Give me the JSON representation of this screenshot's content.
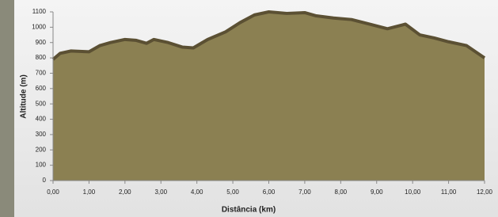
{
  "chart_data": {
    "type": "area",
    "xlabel": "Distância (km)",
    "ylabel": "Altitude (m)",
    "x": [
      0,
      0.2,
      0.5,
      1.0,
      1.3,
      1.6,
      2.0,
      2.3,
      2.6,
      2.8,
      3.2,
      3.6,
      3.9,
      4.3,
      4.8,
      5.2,
      5.6,
      6.0,
      6.5,
      7.0,
      7.3,
      7.8,
      8.3,
      8.8,
      9.3,
      9.8,
      10.2,
      10.6,
      11.0,
      11.5,
      12.0
    ],
    "values": [
      790,
      830,
      845,
      840,
      880,
      900,
      920,
      915,
      895,
      920,
      900,
      870,
      865,
      920,
      970,
      1030,
      1080,
      1100,
      1090,
      1095,
      1075,
      1060,
      1050,
      1020,
      990,
      1020,
      950,
      930,
      905,
      880,
      800
    ],
    "color": "#8b8052",
    "line_color": "#5b5033",
    "xlim": [
      0,
      12
    ],
    "ylim": [
      0,
      1100
    ],
    "xticks": [
      {
        "value": 0,
        "label": "0,00"
      },
      {
        "value": 1,
        "label": "1,00"
      },
      {
        "value": 2,
        "label": "2,00"
      },
      {
        "value": 3,
        "label": "3,00"
      },
      {
        "value": 4,
        "label": "4,00"
      },
      {
        "value": 5,
        "label": "5,00"
      },
      {
        "value": 6,
        "label": "6,00"
      },
      {
        "value": 7,
        "label": "7,00"
      },
      {
        "value": 8,
        "label": "8,00"
      },
      {
        "value": 9,
        "label": "9,00"
      },
      {
        "value": 10,
        "label": "10,00"
      },
      {
        "value": 11,
        "label": "11,00"
      },
      {
        "value": 12,
        "label": "12,00"
      }
    ],
    "yticks": [
      0,
      100,
      200,
      300,
      400,
      500,
      600,
      700,
      800,
      900,
      1000,
      1100
    ]
  }
}
